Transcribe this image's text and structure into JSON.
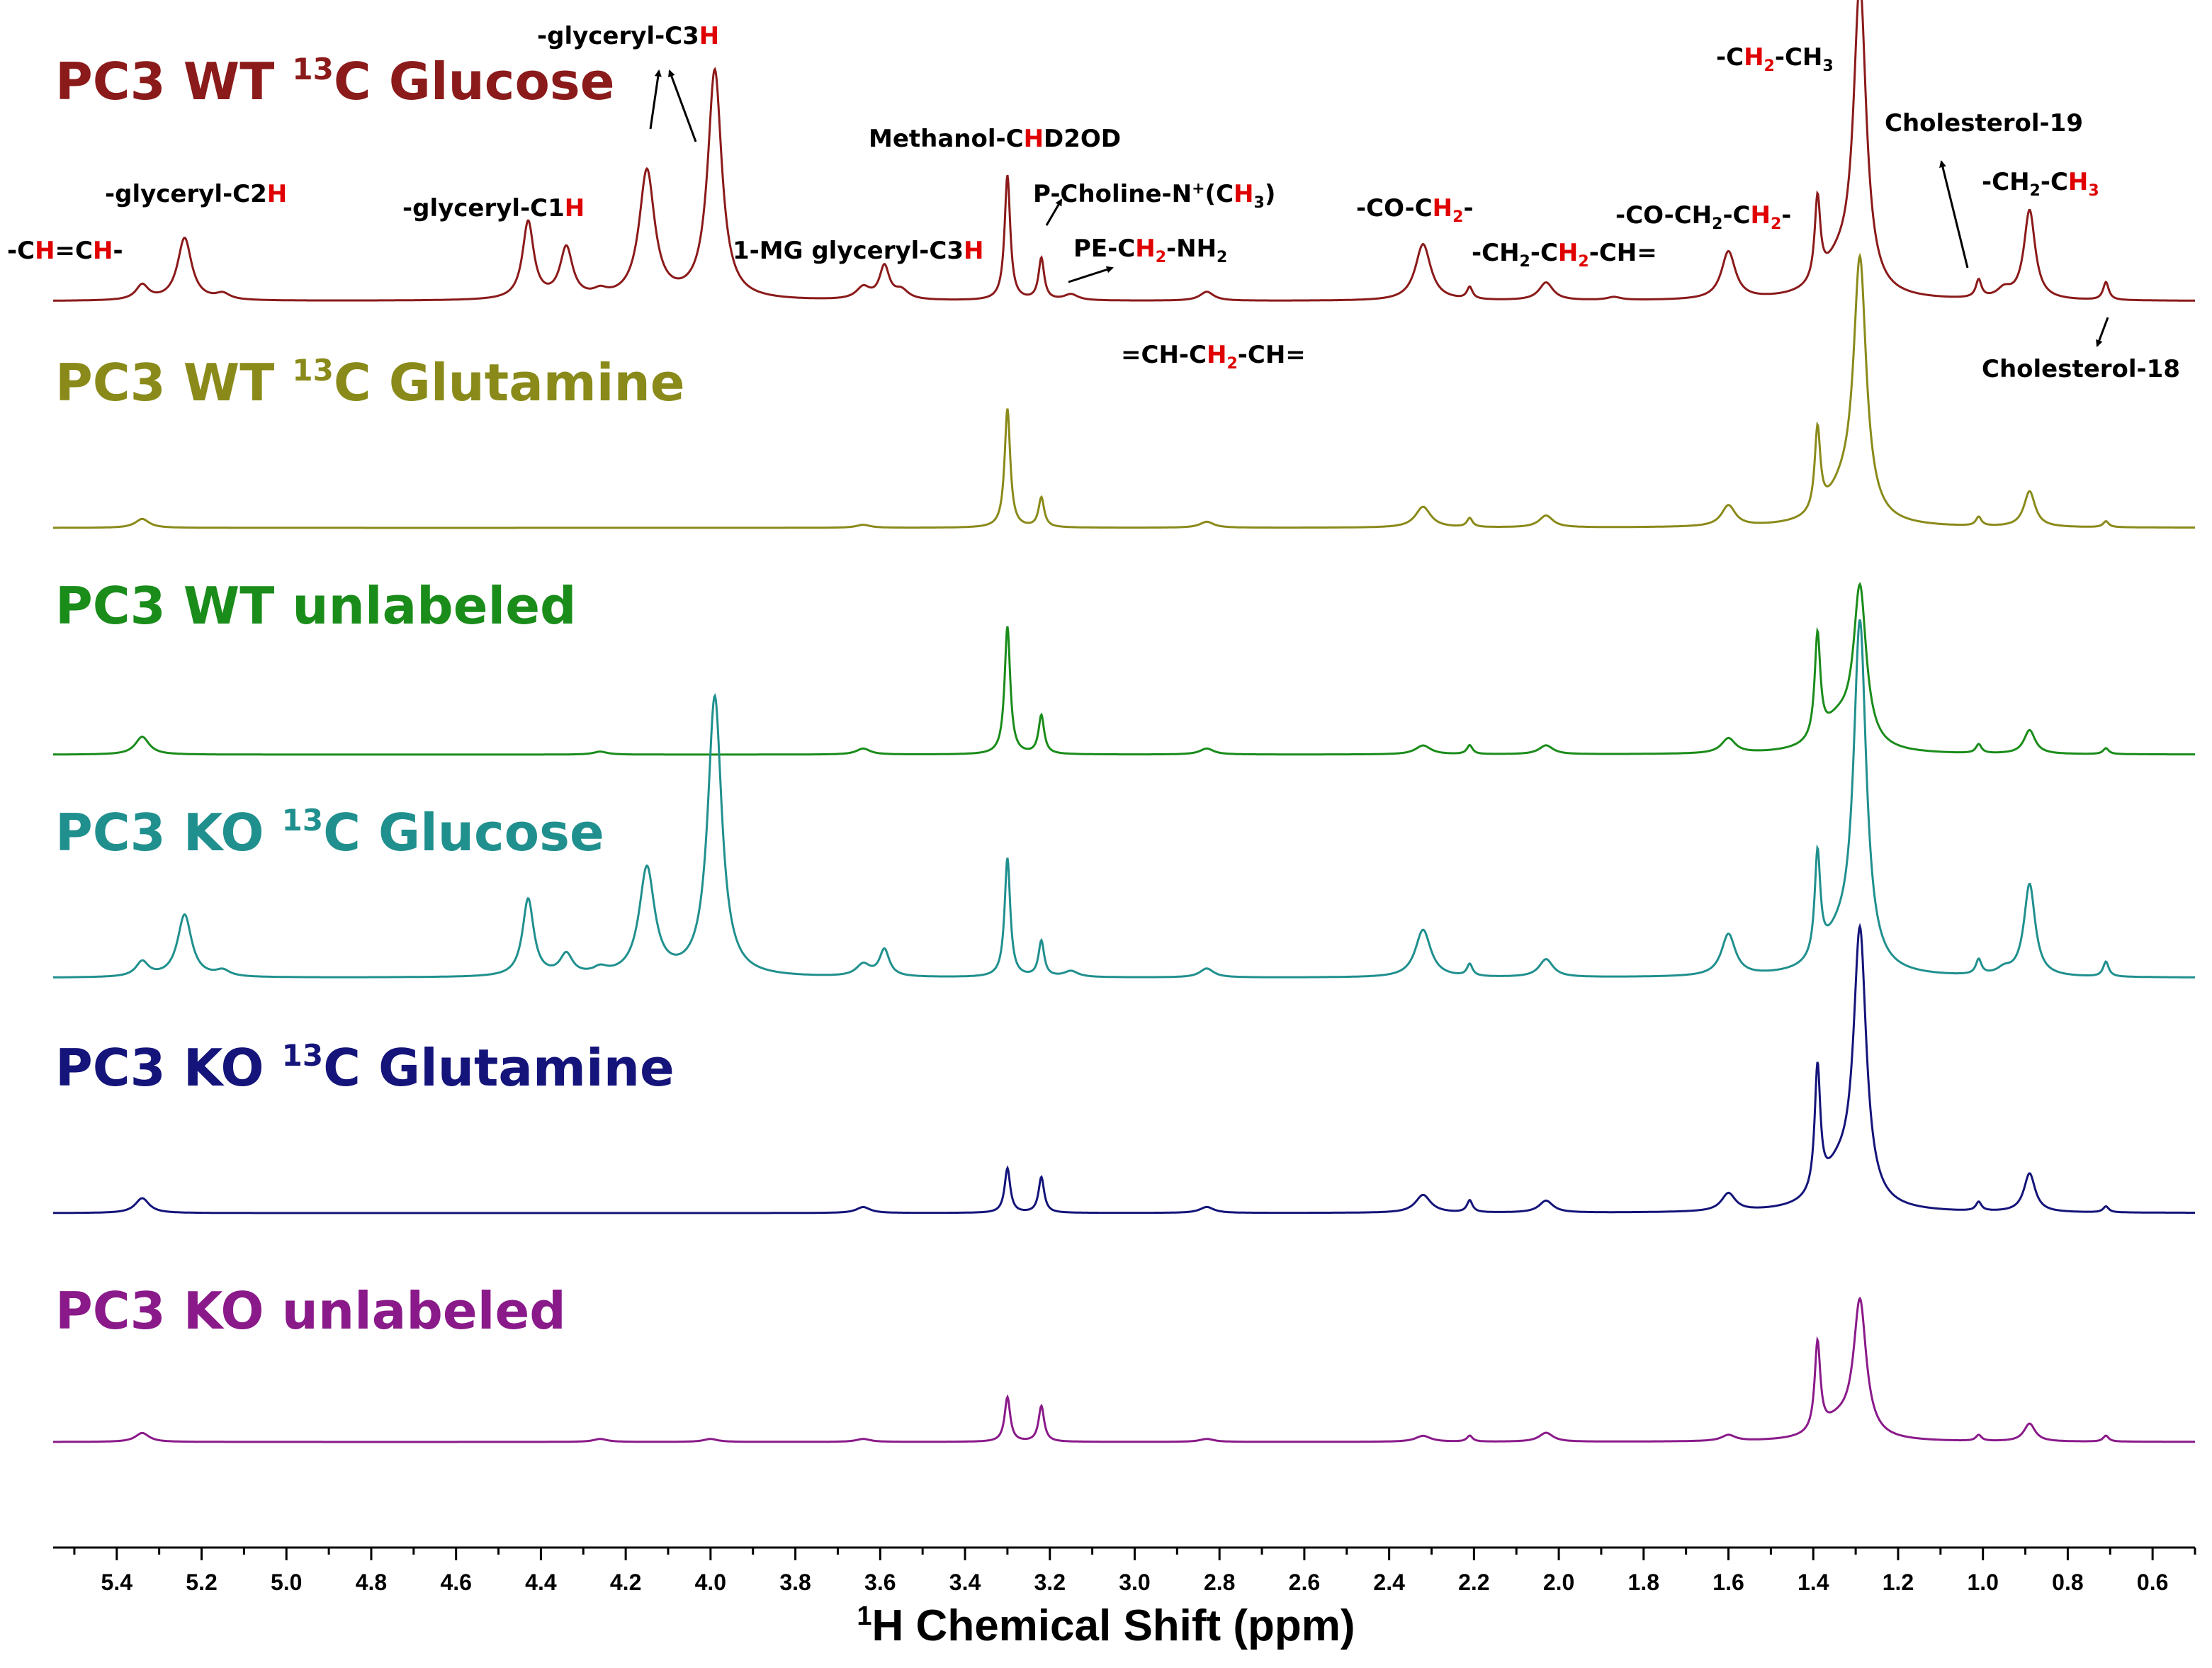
{
  "chart_data": {
    "type": "line",
    "title": "",
    "xlabel_sup": "1",
    "xlabel_main": "H Chemical Shift (ppm)",
    "xlabel": "1H Chemical Shift (ppm)",
    "xlim": [
      5.55,
      0.5
    ],
    "x_ticks": [
      5.4,
      5.2,
      5.0,
      4.8,
      4.6,
      4.4,
      4.2,
      4.0,
      3.8,
      3.6,
      3.4,
      3.2,
      3.0,
      2.8,
      2.6,
      2.4,
      2.2,
      2.0,
      1.8,
      1.6,
      1.4,
      1.2,
      1.0,
      0.8,
      0.6
    ],
    "x_tick_labels": [
      "5.4",
      "5.2",
      "5.0",
      "4.8",
      "4.6",
      "4.4",
      "4.2",
      "4.0",
      "3.8",
      "3.6",
      "3.4",
      "3.2",
      "3.0",
      "2.8",
      "2.6",
      "2.4",
      "2.2",
      "2.0",
      "1.8",
      "1.6",
      "1.4",
      "1.2",
      "1.0",
      "0.8",
      "0.6"
    ],
    "series": [
      {
        "name": "PC3 WT 13C Glucose",
        "title_parts": [
          "PC3 WT ",
          "13",
          "C Glucose"
        ],
        "color": "#8b1a1a",
        "peaks": [
          [
            5.34,
            0.05,
            0.018
          ],
          [
            5.24,
            0.21,
            0.02
          ],
          [
            5.15,
            0.02,
            0.02
          ],
          [
            4.43,
            0.26,
            0.016
          ],
          [
            4.34,
            0.17,
            0.018
          ],
          [
            4.26,
            0.02,
            0.02
          ],
          [
            4.15,
            0.43,
            0.022
          ],
          [
            3.99,
            0.77,
            0.02
          ],
          [
            3.64,
            0.04,
            0.02
          ],
          [
            3.59,
            0.11,
            0.014
          ],
          [
            3.55,
            0.03,
            0.02
          ],
          [
            3.3,
            0.42,
            0.008
          ],
          [
            3.22,
            0.14,
            0.008
          ],
          [
            3.15,
            0.02,
            0.02
          ],
          [
            2.83,
            0.03,
            0.02
          ],
          [
            2.32,
            0.19,
            0.022
          ],
          [
            2.21,
            0.04,
            0.008
          ],
          [
            2.03,
            0.06,
            0.02
          ],
          [
            1.87,
            0.01,
            0.02
          ],
          [
            1.6,
            0.16,
            0.02
          ],
          [
            1.39,
            0.28,
            0.008
          ],
          [
            1.29,
            1.02,
            0.018
          ],
          [
            1.34,
            0.1,
            0.05
          ],
          [
            1.01,
            0.06,
            0.008
          ],
          [
            0.95,
            0.03,
            0.02
          ],
          [
            0.89,
            0.3,
            0.016
          ],
          [
            0.71,
            0.06,
            0.008
          ]
        ]
      },
      {
        "name": "PC3 WT 13C Glutamine",
        "title_parts": [
          "PC3 WT ",
          "13",
          "C Glutamine"
        ],
        "color": "#8a8a1a",
        "peaks": [
          [
            5.34,
            0.03,
            0.02
          ],
          [
            3.64,
            0.01,
            0.02
          ],
          [
            3.3,
            0.4,
            0.008
          ],
          [
            3.22,
            0.1,
            0.008
          ],
          [
            2.83,
            0.02,
            0.02
          ],
          [
            2.32,
            0.07,
            0.022
          ],
          [
            2.21,
            0.03,
            0.008
          ],
          [
            2.03,
            0.04,
            0.02
          ],
          [
            1.6,
            0.07,
            0.02
          ],
          [
            1.39,
            0.28,
            0.008
          ],
          [
            1.29,
            0.85,
            0.018
          ],
          [
            1.33,
            0.1,
            0.05
          ],
          [
            1.01,
            0.03,
            0.008
          ],
          [
            0.89,
            0.12,
            0.016
          ],
          [
            0.71,
            0.02,
            0.008
          ]
        ]
      },
      {
        "name": "PC3 WT unlabeled",
        "title_parts": [
          "PC3 WT unlabeled"
        ],
        "color": "#1a8c1a",
        "peaks": [
          [
            5.34,
            0.06,
            0.02
          ],
          [
            4.26,
            0.01,
            0.02
          ],
          [
            3.64,
            0.02,
            0.02
          ],
          [
            3.3,
            0.43,
            0.008
          ],
          [
            3.22,
            0.13,
            0.008
          ],
          [
            2.83,
            0.02,
            0.02
          ],
          [
            2.32,
            0.03,
            0.022
          ],
          [
            2.21,
            0.03,
            0.008
          ],
          [
            2.03,
            0.03,
            0.02
          ],
          [
            1.6,
            0.05,
            0.02
          ],
          [
            1.39,
            0.35,
            0.008
          ],
          [
            1.29,
            0.52,
            0.018
          ],
          [
            1.34,
            0.1,
            0.05
          ],
          [
            1.01,
            0.03,
            0.008
          ],
          [
            0.89,
            0.08,
            0.016
          ],
          [
            0.71,
            0.02,
            0.008
          ]
        ]
      },
      {
        "name": "PC3 KO 13C Glucose",
        "title_parts": [
          "PC3 KO ",
          "13",
          "C Glucose"
        ],
        "color": "#20908e",
        "peaks": [
          [
            5.34,
            0.05,
            0.018
          ],
          [
            5.24,
            0.21,
            0.02
          ],
          [
            5.15,
            0.02,
            0.02
          ],
          [
            4.43,
            0.26,
            0.016
          ],
          [
            4.34,
            0.07,
            0.018
          ],
          [
            4.26,
            0.02,
            0.02
          ],
          [
            4.15,
            0.36,
            0.022
          ],
          [
            3.99,
            0.94,
            0.02
          ],
          [
            3.64,
            0.04,
            0.02
          ],
          [
            3.59,
            0.09,
            0.014
          ],
          [
            3.3,
            0.4,
            0.008
          ],
          [
            3.22,
            0.12,
            0.008
          ],
          [
            3.15,
            0.02,
            0.02
          ],
          [
            2.83,
            0.03,
            0.02
          ],
          [
            2.32,
            0.16,
            0.022
          ],
          [
            2.21,
            0.04,
            0.008
          ],
          [
            2.03,
            0.06,
            0.02
          ],
          [
            1.6,
            0.14,
            0.02
          ],
          [
            1.39,
            0.35,
            0.008
          ],
          [
            1.29,
            1.15,
            0.018
          ],
          [
            1.34,
            0.1,
            0.05
          ],
          [
            1.01,
            0.05,
            0.008
          ],
          [
            0.95,
            0.02,
            0.02
          ],
          [
            0.89,
            0.31,
            0.016
          ],
          [
            0.71,
            0.05,
            0.008
          ]
        ]
      },
      {
        "name": "PC3 KO 13C Glutamine",
        "title_parts": [
          "PC3 KO ",
          "13",
          "C Glutamine"
        ],
        "color": "#14147a",
        "peaks": [
          [
            5.34,
            0.05,
            0.02
          ],
          [
            3.64,
            0.02,
            0.02
          ],
          [
            3.3,
            0.15,
            0.008
          ],
          [
            3.22,
            0.12,
            0.008
          ],
          [
            2.83,
            0.02,
            0.02
          ],
          [
            2.32,
            0.06,
            0.022
          ],
          [
            2.21,
            0.04,
            0.008
          ],
          [
            2.03,
            0.04,
            0.02
          ],
          [
            1.6,
            0.06,
            0.02
          ],
          [
            1.39,
            0.42,
            0.008
          ],
          [
            1.29,
            0.9,
            0.018
          ],
          [
            1.34,
            0.12,
            0.05
          ],
          [
            1.01,
            0.03,
            0.008
          ],
          [
            0.89,
            0.13,
            0.016
          ],
          [
            0.71,
            0.02,
            0.008
          ]
        ]
      },
      {
        "name": "PC3 KO unlabeled",
        "title_parts": [
          "PC3 KO unlabeled"
        ],
        "color": "#8a1a8a",
        "peaks": [
          [
            5.34,
            0.03,
            0.02
          ],
          [
            4.26,
            0.01,
            0.02
          ],
          [
            4.0,
            0.01,
            0.02
          ],
          [
            3.64,
            0.01,
            0.02
          ],
          [
            3.3,
            0.15,
            0.008
          ],
          [
            3.22,
            0.12,
            0.008
          ],
          [
            2.83,
            0.01,
            0.02
          ],
          [
            2.32,
            0.02,
            0.022
          ],
          [
            2.21,
            0.02,
            0.008
          ],
          [
            2.03,
            0.03,
            0.02
          ],
          [
            1.6,
            0.02,
            0.02
          ],
          [
            1.39,
            0.3,
            0.008
          ],
          [
            1.29,
            0.45,
            0.018
          ],
          [
            1.34,
            0.06,
            0.05
          ],
          [
            1.01,
            0.02,
            0.008
          ],
          [
            0.89,
            0.06,
            0.016
          ],
          [
            0.71,
            0.02,
            0.008
          ]
        ]
      }
    ],
    "annotations": [
      {
        "name": "ann-ch-ch",
        "parts": [
          [
            "-C",
            0
          ],
          [
            "H",
            1
          ],
          [
            "=C",
            0
          ],
          [
            "H",
            1
          ],
          [
            "-",
            0
          ]
        ]
      },
      {
        "name": "ann-glyceryl-c2h",
        "parts": [
          [
            "-glyceryl-C2",
            0
          ],
          [
            "H",
            1
          ]
        ]
      },
      {
        "name": "ann-glyceryl-c1h",
        "parts": [
          [
            "-glyceryl-C1",
            0
          ],
          [
            "H",
            1
          ]
        ]
      },
      {
        "name": "ann-glyceryl-c3h",
        "parts": [
          [
            "-glyceryl-C3",
            0
          ],
          [
            "H",
            1
          ]
        ]
      },
      {
        "name": "ann-1mg-glyceryl-c3h",
        "parts": [
          [
            "1-MG glyceryl-C3",
            0
          ],
          [
            "H",
            1
          ]
        ]
      },
      {
        "name": "ann-methanol",
        "parts": [
          [
            "Methanol-C",
            0
          ],
          [
            "H",
            1
          ],
          [
            "D2OD",
            0
          ]
        ]
      },
      {
        "name": "ann-p-choline",
        "parts": [
          [
            "P-Choline-N",
            0
          ],
          [
            "+",
            3
          ],
          [
            "(C",
            0
          ],
          [
            "H",
            1
          ],
          [
            "3",
            2
          ],
          [
            ")",
            0
          ]
        ]
      },
      {
        "name": "ann-pe-ch2-nh2",
        "parts": [
          [
            "PE-C",
            0
          ],
          [
            "H",
            1
          ],
          [
            "2",
            4
          ],
          [
            "-NH",
            0
          ],
          [
            "2",
            2
          ]
        ]
      },
      {
        "name": "ann-ch-ch2-ch",
        "parts": [
          [
            "=CH-C",
            0
          ],
          [
            "H",
            1
          ],
          [
            "2",
            4
          ],
          [
            "-CH=",
            0
          ]
        ]
      },
      {
        "name": "ann-co-ch2",
        "parts": [
          [
            "-CO-C",
            0
          ],
          [
            "H",
            1
          ],
          [
            "2",
            4
          ],
          [
            "-",
            0
          ]
        ]
      },
      {
        "name": "ann-ch2-ch2-ch",
        "parts": [
          [
            "-CH",
            0
          ],
          [
            "2",
            2
          ],
          [
            "-C",
            0
          ],
          [
            "H",
            1
          ],
          [
            "2",
            4
          ],
          [
            "-CH=",
            0
          ]
        ]
      },
      {
        "name": "ann-co-ch2-ch2",
        "parts": [
          [
            "-CO-CH",
            0
          ],
          [
            "2",
            2
          ],
          [
            "-C",
            0
          ],
          [
            "H",
            1
          ],
          [
            "2",
            4
          ],
          [
            "-",
            0
          ]
        ]
      },
      {
        "name": "ann-ch2-ch3-a",
        "parts": [
          [
            "-C",
            0
          ],
          [
            "H",
            1
          ],
          [
            "2",
            4
          ],
          [
            "-CH",
            0
          ],
          [
            "3",
            2
          ]
        ]
      },
      {
        "name": "ann-cholesterol-19",
        "parts": [
          [
            "Cholesterol-19",
            0
          ]
        ]
      },
      {
        "name": "ann-ch2-ch3-b",
        "parts": [
          [
            "-CH",
            0
          ],
          [
            "2",
            2
          ],
          [
            "-C",
            0
          ],
          [
            "H",
            1
          ],
          [
            "3",
            4
          ]
        ]
      },
      {
        "name": "ann-cholesterol-18",
        "parts": [
          [
            "Cholesterol-18",
            0
          ]
        ]
      }
    ],
    "highlight_color": "#e00000"
  }
}
